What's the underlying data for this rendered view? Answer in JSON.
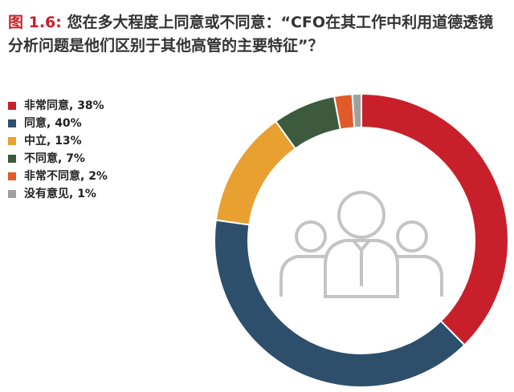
{
  "chart_data": {
    "type": "donut",
    "title_label": "图 1.6:",
    "title": "您在多大程度上同意或不同意：“CFO在其工作中利用道德透镜分析问题是他们区别于其他高管的主要特征”？",
    "categories": [
      "非常同意, 38%",
      "同意, 40%",
      "中立, 13%",
      "不同意, 7%",
      "非常不同意, 2%",
      "没有意见, 1%"
    ],
    "values": [
      38,
      40,
      13,
      7,
      2,
      1
    ],
    "colors": [
      "#c8202a",
      "#2d4f6b",
      "#e8a030",
      "#3d5a3f",
      "#e05a2a",
      "#a0a0a0"
    ]
  }
}
